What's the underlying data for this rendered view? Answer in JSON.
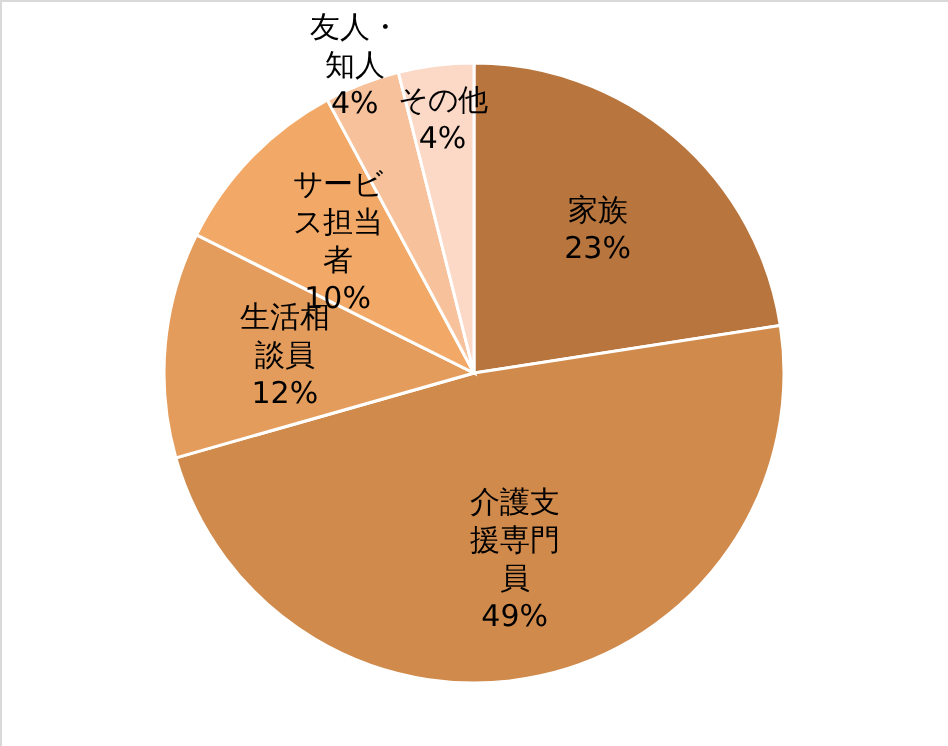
{
  "chart_data": {
    "type": "pie",
    "categories": [
      "家族",
      "介護支援専門員",
      "生活相談員",
      "サービス担当者",
      "友人・知人",
      "その他"
    ],
    "values": [
      23,
      49,
      12,
      10,
      4,
      4
    ],
    "value_labels": [
      "23%",
      "49%",
      "12%",
      "10%",
      "4%",
      "4%"
    ],
    "colors": [
      "#b8763e",
      "#d08a4c",
      "#e49c5c",
      "#f2a967",
      "#f7c29b",
      "#fbd9c6"
    ]
  }
}
